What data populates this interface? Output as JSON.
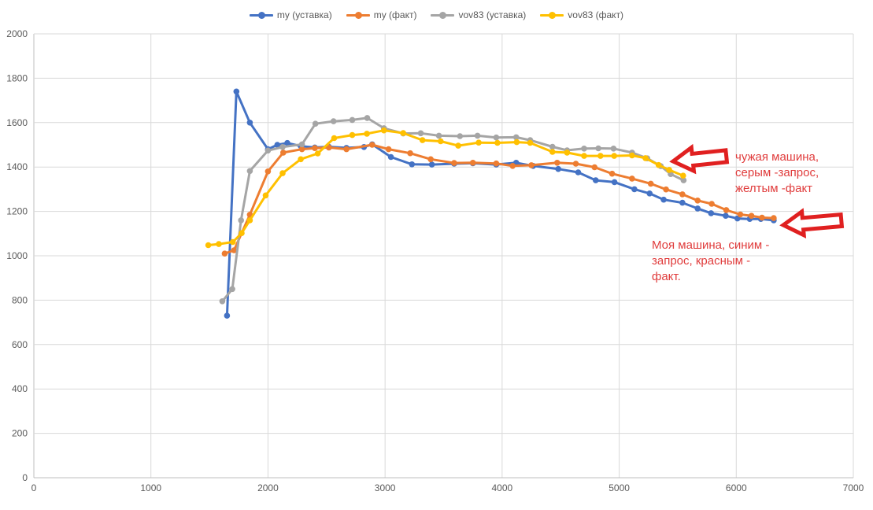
{
  "chart_data": {
    "type": "line",
    "title": "",
    "xlabel": "",
    "ylabel": "",
    "xlim": [
      0,
      7000
    ],
    "ylim": [
      0,
      2000
    ],
    "x_ticks": [
      0,
      1000,
      2000,
      3000,
      4000,
      5000,
      6000,
      7000
    ],
    "y_ticks": [
      0,
      200,
      400,
      600,
      800,
      1000,
      1200,
      1400,
      1600,
      1800,
      2000
    ],
    "grid": true,
    "legend_position": "top-center",
    "series": [
      {
        "name": "my (уставка)",
        "color": "#4472C4",
        "points": [
          [
            1650,
            730
          ],
          [
            1730,
            1740
          ],
          [
            1845,
            1600
          ],
          [
            2000,
            1480
          ],
          [
            2080,
            1500
          ],
          [
            2165,
            1508
          ],
          [
            2280,
            1494
          ],
          [
            2400,
            1488
          ],
          [
            2520,
            1491
          ],
          [
            2670,
            1486
          ],
          [
            2820,
            1490
          ],
          [
            2890,
            1502
          ],
          [
            3050,
            1445
          ],
          [
            3230,
            1412
          ],
          [
            3400,
            1411
          ],
          [
            3590,
            1415
          ],
          [
            3750,
            1417
          ],
          [
            3950,
            1411
          ],
          [
            4120,
            1419
          ],
          [
            4265,
            1405
          ],
          [
            4480,
            1391
          ],
          [
            4650,
            1376
          ],
          [
            4800,
            1340
          ],
          [
            4960,
            1332
          ],
          [
            5130,
            1300
          ],
          [
            5260,
            1281
          ],
          [
            5380,
            1253
          ],
          [
            5540,
            1239
          ],
          [
            5670,
            1213
          ],
          [
            5785,
            1192
          ],
          [
            5910,
            1180
          ],
          [
            6010,
            1168
          ],
          [
            6115,
            1166
          ],
          [
            6210,
            1166
          ],
          [
            6320,
            1160
          ]
        ]
      },
      {
        "name": "my (факт)",
        "color": "#ED7D31",
        "points": [
          [
            1630,
            1010
          ],
          [
            1710,
            1025
          ],
          [
            1845,
            1185
          ],
          [
            2000,
            1380
          ],
          [
            2130,
            1465
          ],
          [
            2290,
            1480
          ],
          [
            2400,
            1485
          ],
          [
            2520,
            1488
          ],
          [
            2670,
            1480
          ],
          [
            2890,
            1500
          ],
          [
            3030,
            1480
          ],
          [
            3215,
            1462
          ],
          [
            3390,
            1435
          ],
          [
            3590,
            1418
          ],
          [
            3750,
            1419
          ],
          [
            3950,
            1416
          ],
          [
            4090,
            1405
          ],
          [
            4250,
            1408
          ],
          [
            4470,
            1419
          ],
          [
            4630,
            1415
          ],
          [
            4790,
            1399
          ],
          [
            4940,
            1370
          ],
          [
            5110,
            1348
          ],
          [
            5270,
            1325
          ],
          [
            5400,
            1299
          ],
          [
            5540,
            1277
          ],
          [
            5670,
            1249
          ],
          [
            5790,
            1234
          ],
          [
            5915,
            1206
          ],
          [
            6035,
            1186
          ],
          [
            6130,
            1180
          ],
          [
            6220,
            1172
          ],
          [
            6320,
            1170
          ]
        ]
      },
      {
        "name": "vov83 (уставка)",
        "color": "#A5A5A5",
        "points": [
          [
            1610,
            795
          ],
          [
            1695,
            850
          ],
          [
            1770,
            1160
          ],
          [
            1845,
            1382
          ],
          [
            2000,
            1474
          ],
          [
            2125,
            1490
          ],
          [
            2290,
            1502
          ],
          [
            2405,
            1595
          ],
          [
            2560,
            1606
          ],
          [
            2720,
            1612
          ],
          [
            2848,
            1621
          ],
          [
            2990,
            1575
          ],
          [
            3155,
            1551
          ],
          [
            3305,
            1552
          ],
          [
            3460,
            1541
          ],
          [
            3640,
            1539
          ],
          [
            3790,
            1541
          ],
          [
            3950,
            1533
          ],
          [
            4120,
            1534
          ],
          [
            4240,
            1521
          ],
          [
            4430,
            1491
          ],
          [
            4555,
            1475
          ],
          [
            4700,
            1483
          ],
          [
            4822,
            1484
          ],
          [
            4952,
            1483
          ],
          [
            5110,
            1465
          ],
          [
            5240,
            1439
          ],
          [
            5355,
            1404
          ],
          [
            5440,
            1368
          ],
          [
            5550,
            1340
          ]
        ]
      },
      {
        "name": "vov83 (факт)",
        "color": "#FFC000",
        "points": [
          [
            1490,
            1048
          ],
          [
            1580,
            1053
          ],
          [
            1700,
            1062
          ],
          [
            1775,
            1102
          ],
          [
            1845,
            1160
          ],
          [
            1980,
            1272
          ],
          [
            2125,
            1372
          ],
          [
            2280,
            1435
          ],
          [
            2425,
            1461
          ],
          [
            2565,
            1530
          ],
          [
            2720,
            1544
          ],
          [
            2845,
            1550
          ],
          [
            2990,
            1565
          ],
          [
            3155,
            1553
          ],
          [
            3320,
            1521
          ],
          [
            3475,
            1516
          ],
          [
            3625,
            1496
          ],
          [
            3800,
            1510
          ],
          [
            3960,
            1509
          ],
          [
            4125,
            1512
          ],
          [
            4240,
            1509
          ],
          [
            4430,
            1468
          ],
          [
            4555,
            1465
          ],
          [
            4700,
            1450
          ],
          [
            4840,
            1450
          ],
          [
            4957,
            1450
          ],
          [
            5110,
            1452
          ],
          [
            5225,
            1440
          ],
          [
            5337,
            1409
          ],
          [
            5427,
            1387
          ],
          [
            5546,
            1361
          ]
        ]
      }
    ]
  },
  "annotations": {
    "other_machine": {
      "lines": [
        "чужая машина,",
        "серым -запрос,",
        "желтым -факт"
      ]
    },
    "my_machine": {
      "lines": [
        "Моя машина, синим -",
        "запрос, красным -",
        "факт."
      ]
    },
    "text_color": "#E03C3C",
    "arrow_color": "#E02020",
    "arrow_fill": "#FFFFFF"
  },
  "axes": {
    "grid_color": "#D9D9D9",
    "axis_color": "#BFBFBF",
    "tick_color": "#595959"
  }
}
